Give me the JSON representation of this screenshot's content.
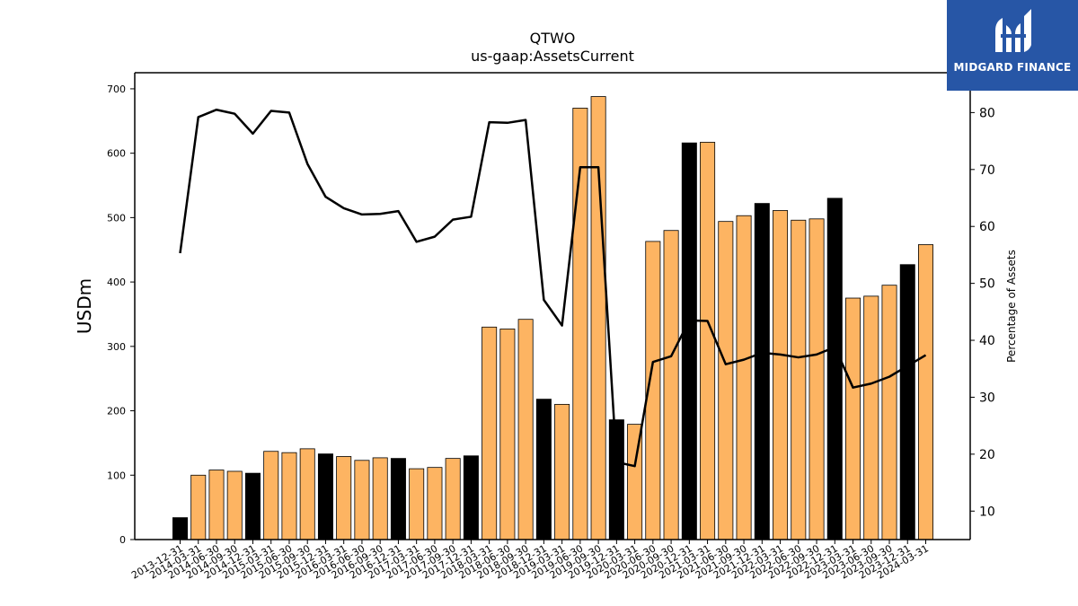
{
  "chart_data": {
    "type": "bar",
    "title": "QTWO",
    "subtitle": "us-gaap:AssetsCurrent",
    "ylabel": "USDm",
    "y2label": "Percentage of Assets",
    "ylim": [
      0,
      725
    ],
    "y2lim": [
      5,
      87
    ],
    "yticks": [
      0,
      100,
      200,
      300,
      400,
      500,
      600,
      700
    ],
    "y2ticks": [
      10,
      20,
      30,
      40,
      50,
      60,
      70,
      80
    ],
    "legend": "none",
    "grid": false,
    "colors": {
      "quarter": "#fdb462",
      "year_end": "#000000",
      "line": "#000000"
    },
    "categories": [
      "2013-12-31",
      "2014-03-31",
      "2014-06-30",
      "2014-09-30",
      "2014-12-31",
      "2015-03-31",
      "2015-06-30",
      "2015-09-30",
      "2015-12-31",
      "2016-03-31",
      "2016-06-30",
      "2016-09-30",
      "2016-12-31",
      "2017-03-31",
      "2017-06-30",
      "2017-09-30",
      "2017-12-31",
      "2018-03-31",
      "2018-06-30",
      "2018-09-30",
      "2018-12-31",
      "2019-03-31",
      "2019-06-30",
      "2019-09-30",
      "2019-12-31",
      "2020-03-31",
      "2020-06-30",
      "2020-09-30",
      "2020-12-31",
      "2021-03-31",
      "2021-06-30",
      "2021-09-30",
      "2021-12-31",
      "2022-03-31",
      "2022-06-30",
      "2022-09-30",
      "2022-12-31",
      "2023-03-31",
      "2023-06-30",
      "2023-09-30",
      "2023-12-31",
      "2024-03-31"
    ],
    "series": [
      {
        "type": "bar",
        "values": [
          34,
          100,
          108,
          106,
          103,
          137,
          135,
          141,
          133,
          129,
          123,
          127,
          126,
          110,
          112,
          126,
          130,
          330,
          327,
          342,
          218,
          210,
          670,
          688,
          186,
          179,
          463,
          480,
          616,
          617,
          494,
          503,
          522,
          511,
          496,
          498,
          530,
          375,
          378,
          395,
          427,
          458
        ],
        "year_end": [
          true,
          false,
          false,
          false,
          true,
          false,
          false,
          false,
          true,
          false,
          false,
          false,
          true,
          false,
          false,
          false,
          true,
          false,
          false,
          false,
          true,
          false,
          false,
          false,
          true,
          false,
          false,
          false,
          true,
          false,
          false,
          false,
          true,
          false,
          false,
          false,
          true,
          false,
          false,
          false,
          true,
          false
        ]
      },
      {
        "type": "line",
        "axis": "right",
        "values": [
          55.3,
          79.2,
          80.5,
          79.8,
          76.3,
          80.3,
          80.0,
          71.0,
          65.2,
          63.2,
          62.1,
          62.2,
          62.7,
          57.3,
          58.2,
          61.2,
          61.7,
          78.3,
          78.2,
          78.7,
          47.1,
          42.6,
          70.4,
          70.4,
          18.6,
          17.9,
          36.2,
          37.2,
          43.5,
          43.4,
          35.8,
          36.6,
          37.8,
          37.5,
          37.0,
          37.5,
          38.8,
          31.7,
          32.4,
          33.6,
          35.5,
          37.4
        ]
      }
    ]
  },
  "logo": {
    "text": "MIDGARD FINANCE"
  }
}
